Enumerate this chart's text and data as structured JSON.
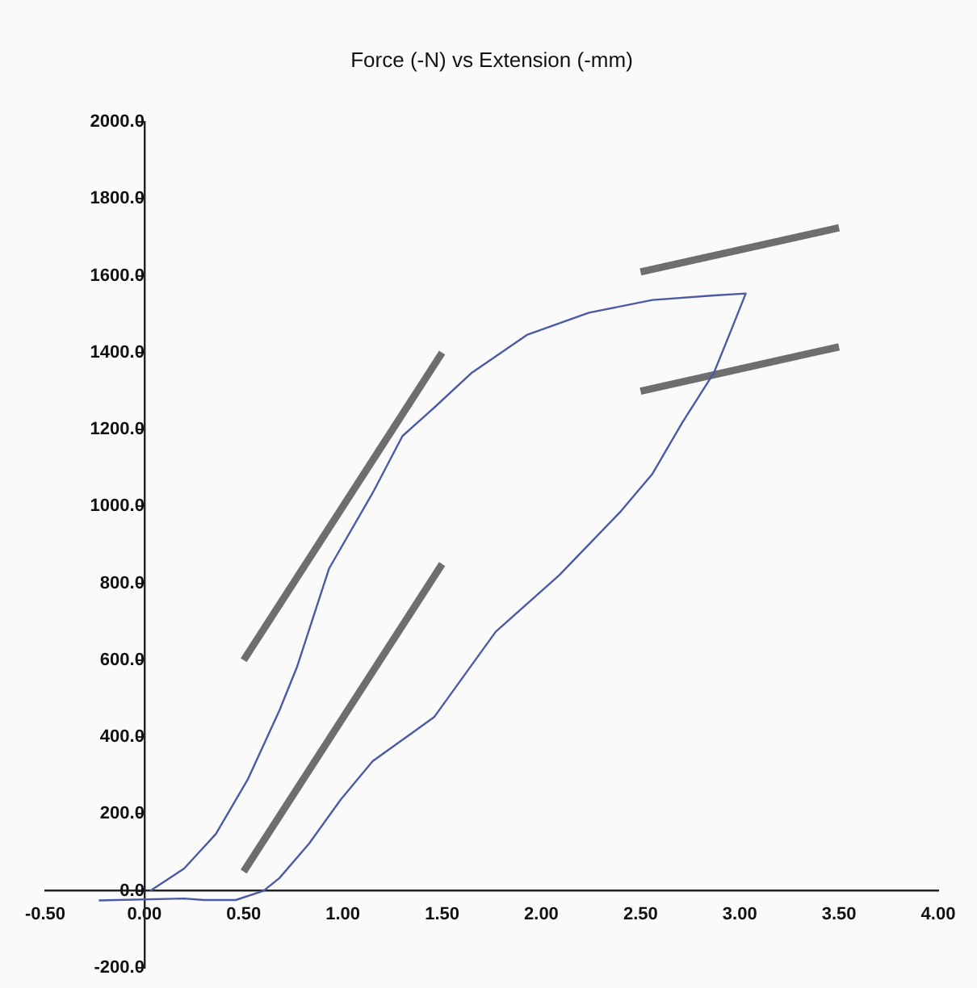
{
  "chart_data": {
    "type": "line",
    "title": "Force (-N) vs Extension (-mm)",
    "xlim": [
      -0.5,
      4.0
    ],
    "xticks": [
      {
        "value": -0.5,
        "label": "-0.50"
      },
      {
        "value": 0,
        "label": "0.00"
      },
      {
        "value": 0.5,
        "label": "0.50"
      },
      {
        "value": 1,
        "label": "1.00"
      },
      {
        "value": 1.5,
        "label": "1.50"
      },
      {
        "value": 2,
        "label": "2.00"
      },
      {
        "value": 2.5,
        "label": "2.50"
      },
      {
        "value": 3,
        "label": "3.00"
      },
      {
        "value": 3.5,
        "label": "3.50"
      },
      {
        "value": 4,
        "label": "4.00"
      }
    ],
    "ylim": [
      -200,
      2000
    ],
    "yticks": [
      {
        "value": -200,
        "label": "-200.0"
      },
      {
        "value": 0,
        "label": "0.0"
      },
      {
        "value": 200,
        "label": "200.0"
      },
      {
        "value": 400,
        "label": "400.0"
      },
      {
        "value": 600,
        "label": "600.0"
      },
      {
        "value": 800,
        "label": "800.0"
      },
      {
        "value": 1000,
        "label": "1000.0"
      },
      {
        "value": 1200,
        "label": "1200.0"
      },
      {
        "value": 1400,
        "label": "1400.0"
      },
      {
        "value": 1600,
        "label": "1600.0"
      },
      {
        "value": 1800,
        "label": "1800.0"
      },
      {
        "value": 2000,
        "label": "2000.0"
      }
    ],
    "grid": false,
    "legend": false,
    "marker": "none",
    "line_style": "solid",
    "series": [
      {
        "color": "#4a5aa8",
        "x": [
          0.03,
          0.2,
          0.36,
          0.52,
          0.68,
          0.77,
          0.93,
          1.15,
          1.3,
          1.46,
          1.65,
          1.93,
          2.24,
          2.56,
          2.87,
          3.03,
          2.96,
          2.87,
          2.71,
          2.56,
          2.4,
          2.09,
          1.77,
          1.46,
          1.15,
          0.99,
          0.83,
          0.68,
          0.6,
          0.46,
          0.3,
          0.2,
          -0.23
        ],
        "values": [
          0,
          58,
          148,
          289,
          469,
          584,
          838,
          1035,
          1183,
          1257,
          1348,
          1447,
          1504,
          1537,
          1549,
          1554,
          1463,
          1348,
          1218,
          1085,
          987,
          821,
          674,
          452,
          337,
          238,
          123,
          33,
          0,
          -24,
          -24,
          -20,
          -25
        ]
      },
      {
        "color": "#6e6e6e",
        "x": [
          0.5,
          1.5
        ],
        "values": [
          600,
          1400
        ]
      },
      {
        "color": "#6e6e6e",
        "x": [
          0.5,
          1.5
        ],
        "values": [
          50,
          850
        ]
      },
      {
        "color": "#6e6e6e",
        "x": [
          2.5,
          3.5
        ],
        "values": [
          1610,
          1725
        ]
      },
      {
        "color": "#6e6e6e",
        "x": [
          2.5,
          3.5
        ],
        "values": [
          1300,
          1415
        ]
      }
    ]
  }
}
